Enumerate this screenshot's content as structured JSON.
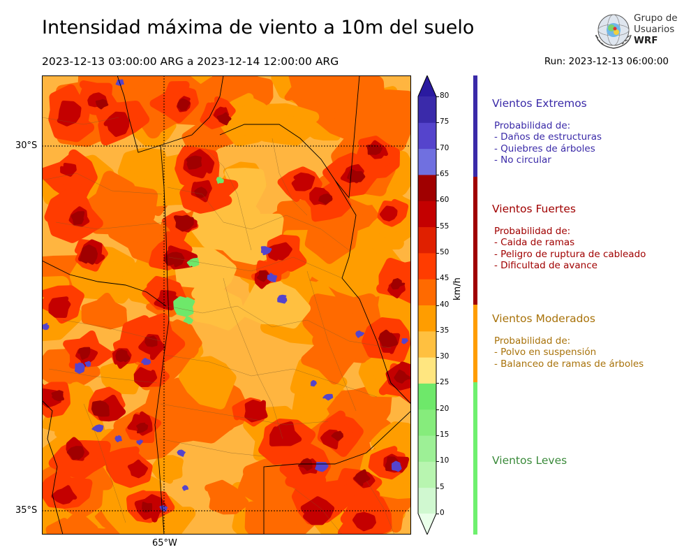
{
  "header": {
    "title": "Intensidad máxima de viento a 10m del suelo",
    "period": "2023-12-13 03:00:00 ARG  a  2023-12-14 12:00:00 ARG",
    "run": "Run: 2023-12-13 06:00:00"
  },
  "logo": {
    "line1": "Grupo de",
    "line2": "Usuarios",
    "line3": "WRF"
  },
  "map": {
    "lat_labels": [
      "30°S",
      "35°S"
    ],
    "lon_labels": [
      "65°W"
    ],
    "rings": [
      {
        "level": 35,
        "color": "#ffb540"
      },
      {
        "level": 40,
        "color": "#ff9900"
      },
      {
        "level": 45,
        "color": "#ff6600"
      },
      {
        "level": 55,
        "color": "#e22200"
      },
      {
        "level": 60,
        "color": "#c00000"
      }
    ]
  },
  "colorbar": {
    "unit": "km/h",
    "min": 0,
    "max": 80,
    "ticks": [
      0,
      5,
      10,
      15,
      20,
      25,
      30,
      35,
      40,
      45,
      50,
      55,
      60,
      65,
      70,
      75,
      80
    ],
    "colors": [
      "#eaffea",
      "#d0f8d0",
      "#b8f5b0",
      "#9df096",
      "#86ec7c",
      "#6ee86a",
      "#ffe680",
      "#ffc040",
      "#ff9d00",
      "#ff6a00",
      "#ff3c00",
      "#e02000",
      "#c40000",
      "#a00000",
      "#7070e0",
      "#5544cc",
      "#3a2aaa",
      "#2a1aa0"
    ]
  },
  "categories": [
    {
      "title": "Vientos Extremos",
      "color": "#3a2aa8",
      "lines": [
        "Probabilidad de:",
        "- Daños de estructuras",
        "- Quiebres de árboles",
        "- No circular"
      ]
    },
    {
      "title": "Vientos Fuertes",
      "color": "#a00000",
      "lines": [
        "Probabilidad de:",
        "- Caida de ramas",
        "- Peligro de ruptura de cableado",
        "- Dificultad de avance"
      ]
    },
    {
      "title": "Vientos Moderados",
      "color": "#a8720a",
      "lines": [
        "Probabilidad de:",
        "- Polvo en suspensión",
        "- Balanceo de ramas de árboles"
      ]
    },
    {
      "title": "Vientos Leves",
      "color": "#3a8a3a",
      "lines": []
    }
  ],
  "category_bar_colors": [
    "#3a2aa8",
    "#a00000",
    "#ff9d00",
    "#6ef06e"
  ]
}
